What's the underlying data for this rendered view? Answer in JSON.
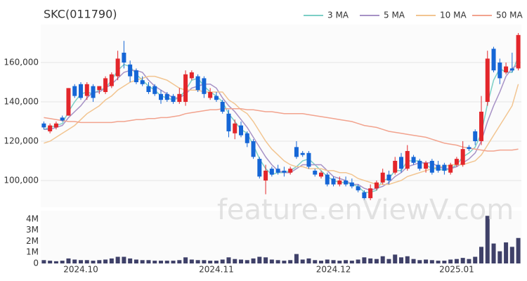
{
  "chart_data": [
    {
      "type": "candlestick",
      "title": "SKC(011790)",
      "watermark": "feature.enViewV.com",
      "categories": [
        null,
        null,
        null,
        null,
        null,
        null,
        "2024.10",
        null,
        null,
        null,
        null,
        null,
        null,
        null,
        null,
        null,
        null,
        null,
        null,
        null,
        null,
        null,
        null,
        null,
        null,
        null,
        null,
        null,
        "2024.11",
        null,
        null,
        null,
        null,
        null,
        null,
        null,
        null,
        null,
        null,
        null,
        null,
        null,
        null,
        null,
        null,
        null,
        null,
        "2024.12",
        null,
        null,
        null,
        null,
        null,
        null,
        null,
        null,
        null,
        null,
        null,
        null,
        null,
        null,
        null,
        null,
        null,
        null,
        null,
        "2025.01",
        null,
        null,
        null,
        null,
        null,
        null,
        null,
        null,
        null,
        null
      ],
      "open": [
        129000,
        125000,
        127000,
        132000,
        133000,
        148000,
        149000,
        143000,
        148000,
        146000,
        145000,
        148000,
        153000,
        165000,
        159000,
        156000,
        151000,
        148000,
        148000,
        144000,
        144000,
        143000,
        140000,
        140000,
        152000,
        153000,
        152000,
        142000,
        143000,
        140000,
        134000,
        124000,
        128000,
        124000,
        120000,
        111000,
        100000,
        106000,
        106000,
        105000,
        104000,
        117000,
        114000,
        114000,
        105000,
        102000,
        103000,
        101000,
        98000,
        100000,
        99000,
        97000,
        94000,
        91000,
        96000,
        99000,
        103000,
        104000,
        112000,
        106000,
        112000,
        110000,
        106000,
        110000,
        108000,
        108000,
        104000,
        108000,
        108000,
        117000,
        125000,
        120000,
        140000,
        167000,
        160000,
        155000,
        157000,
        157000
      ],
      "high": [
        130000,
        129000,
        130000,
        133000,
        147000,
        149000,
        150000,
        150000,
        149000,
        148000,
        153000,
        155000,
        166000,
        171000,
        161000,
        157000,
        153000,
        150000,
        149000,
        146000,
        145000,
        144000,
        147000,
        156000,
        156000,
        154000,
        153000,
        147000,
        145000,
        141000,
        136000,
        131000,
        130000,
        125000,
        121000,
        112000,
        108000,
        107000,
        108000,
        107000,
        107000,
        120000,
        115000,
        115000,
        106000,
        105000,
        104000,
        102000,
        102000,
        102000,
        101000,
        98000,
        95000,
        98000,
        100000,
        106000,
        105000,
        112000,
        114000,
        118000,
        113000,
        111000,
        110000,
        111000,
        110000,
        109000,
        109000,
        112000,
        120000,
        118000,
        126000,
        143000,
        166000,
        168000,
        162000,
        160000,
        165000,
        175000
      ],
      "low": [
        126000,
        124000,
        126000,
        130000,
        133000,
        142000,
        141000,
        141000,
        140000,
        144000,
        144000,
        147000,
        151000,
        157000,
        150000,
        149000,
        148000,
        144000,
        143000,
        139000,
        140000,
        139000,
        139000,
        138000,
        151000,
        145000,
        142000,
        141000,
        140000,
        134000,
        122000,
        121000,
        122000,
        117000,
        111000,
        101000,
        93000,
        102000,
        103000,
        102000,
        103000,
        111000,
        112000,
        106000,
        102000,
        101000,
        97000,
        97000,
        97000,
        97000,
        96000,
        94000,
        90000,
        90000,
        95000,
        98000,
        98000,
        103000,
        104000,
        105000,
        108000,
        105000,
        104000,
        103000,
        104000,
        103000,
        103000,
        107000,
        107000,
        115000,
        118000,
        118000,
        138000,
        155000,
        149000,
        154000,
        155000,
        156000
      ],
      "close": [
        127000,
        128000,
        129000,
        130500,
        147000,
        143000,
        142000,
        149000,
        142000,
        148000,
        152000,
        154000,
        162000,
        160000,
        153000,
        150000,
        149000,
        145000,
        144000,
        141000,
        141000,
        140000,
        144000,
        154000,
        155000,
        146000,
        144000,
        145000,
        141000,
        135000,
        125000,
        129000,
        123000,
        119000,
        112000,
        102000,
        105000,
        103000,
        104000,
        104000,
        106000,
        112000,
        113000,
        107000,
        103000,
        104000,
        98000,
        98000,
        100000,
        98000,
        97000,
        95000,
        91000,
        96000,
        99000,
        104000,
        100000,
        110000,
        106000,
        115000,
        109000,
        106000,
        109000,
        104000,
        105000,
        105000,
        108000,
        111000,
        116000,
        116000,
        120000,
        135000,
        162000,
        156000,
        152000,
        158000,
        156000,
        174000
      ],
      "up_color": "#e3262b",
      "down_color": "#1566d6",
      "series": [
        {
          "name": "3 MA",
          "color": "#7ccfc6",
          "values": [
            126000,
            127000,
            128000,
            129000,
            135000,
            140000,
            144000,
            145000,
            144000,
            146000,
            147000,
            151000,
            156000,
            159000,
            158000,
            154000,
            151000,
            148000,
            146000,
            143000,
            142000,
            141000,
            142000,
            146000,
            151000,
            152000,
            148000,
            145000,
            143000,
            140000,
            134000,
            130000,
            126000,
            124000,
            118000,
            111000,
            106000,
            103000,
            104000,
            104000,
            105000,
            107000,
            110000,
            111000,
            108000,
            105000,
            102000,
            100000,
            99000,
            99000,
            98000,
            97000,
            94000,
            94000,
            95000,
            100000,
            101000,
            105000,
            105000,
            110000,
            110000,
            110000,
            108000,
            106000,
            106000,
            105000,
            106000,
            108000,
            112000,
            114000,
            117000,
            124000,
            139000,
            151000,
            157000,
            155000,
            155000,
            163000
          ]
        },
        {
          "name": "5 MA",
          "color": "#a792c6",
          "values": [
            126000,
            126000,
            127000,
            128000,
            132000,
            135000,
            138000,
            142000,
            145000,
            145000,
            147000,
            149000,
            152000,
            155000,
            156000,
            156000,
            155000,
            151000,
            148000,
            146000,
            144000,
            142000,
            142000,
            144000,
            147000,
            148000,
            149000,
            149000,
            147000,
            142000,
            138000,
            135000,
            131000,
            127000,
            122000,
            117000,
            112000,
            108000,
            105000,
            104000,
            104000,
            106000,
            108000,
            108000,
            108000,
            108000,
            105000,
            102000,
            101000,
            100000,
            98000,
            98000,
            96000,
            95000,
            96000,
            97000,
            99000,
            102000,
            104000,
            107000,
            108000,
            109000,
            109000,
            109000,
            107000,
            106000,
            106000,
            107000,
            109000,
            111000,
            114000,
            120000,
            130000,
            138000,
            145000,
            153000,
            157000,
            159000
          ]
        },
        {
          "name": "10 MA",
          "color": "#f2c591",
          "values": [
            119000,
            120000,
            122000,
            124000,
            126000,
            128000,
            131000,
            134000,
            136000,
            138000,
            141000,
            143000,
            146000,
            148000,
            150000,
            151000,
            152000,
            153000,
            153000,
            152000,
            151000,
            149000,
            147000,
            146000,
            146000,
            146000,
            145000,
            145000,
            145000,
            145000,
            141000,
            139000,
            136000,
            134000,
            130000,
            125000,
            120000,
            116000,
            113000,
            110000,
            108000,
            107000,
            107000,
            106000,
            106000,
            106000,
            105000,
            105000,
            104000,
            104000,
            103000,
            101000,
            100000,
            99000,
            98000,
            98000,
            98000,
            99000,
            100000,
            102000,
            103000,
            104000,
            105000,
            106000,
            107000,
            107000,
            108000,
            108000,
            108000,
            109000,
            110000,
            113000,
            118000,
            123000,
            128000,
            133000,
            138000,
            149000
          ]
        },
        {
          "name": "50 MA",
          "color": "#f2a38e",
          "values": [
            132000,
            131500,
            131000,
            130500,
            130000,
            130000,
            129500,
            129500,
            129500,
            129500,
            129500,
            129500,
            130000,
            130000,
            130500,
            131000,
            131000,
            131500,
            131500,
            132000,
            132000,
            132500,
            133000,
            134000,
            134500,
            135000,
            135500,
            136000,
            136000,
            136500,
            136500,
            136500,
            136500,
            136000,
            136000,
            135500,
            135000,
            135000,
            134500,
            134000,
            134000,
            134000,
            134000,
            133500,
            133000,
            132500,
            132000,
            131500,
            131000,
            130500,
            130000,
            129000,
            128000,
            127500,
            127000,
            126000,
            125000,
            124500,
            124000,
            123500,
            123000,
            122500,
            122000,
            121000,
            120000,
            119000,
            118500,
            118000,
            117000,
            116500,
            116000,
            115500,
            115000,
            115000,
            115500,
            115500,
            115500,
            116000
          ]
        }
      ],
      "ylim": [
        86400,
        179300
      ],
      "yticks": [
        {
          "value": 100000,
          "label": "100,000"
        },
        {
          "value": 120000,
          "label": "120,000"
        },
        {
          "value": 140000,
          "label": "140,000"
        },
        {
          "value": 160000,
          "label": "160,000"
        }
      ],
      "grid": true
    },
    {
      "type": "bar",
      "color": "#3f4169",
      "values": [
        300000,
        250000,
        200000,
        250000,
        450000,
        350000,
        300000,
        300000,
        250000,
        300000,
        350000,
        450000,
        600000,
        600000,
        450000,
        350000,
        300000,
        300000,
        250000,
        250000,
        250000,
        250000,
        300000,
        550000,
        350000,
        300000,
        300000,
        250000,
        250000,
        350000,
        550000,
        400000,
        350000,
        300000,
        450000,
        600000,
        550000,
        350000,
        300000,
        250000,
        300000,
        850000,
        350000,
        450000,
        300000,
        250000,
        350000,
        300000,
        250000,
        300000,
        250000,
        350000,
        550000,
        450000,
        400000,
        650000,
        400000,
        800000,
        550000,
        650000,
        400000,
        300000,
        350000,
        300000,
        250000,
        250000,
        350000,
        400000,
        500000,
        400000,
        600000,
        1500000,
        4300000,
        1800000,
        1100000,
        1900000,
        1500000,
        2300000
      ],
      "ylim": [
        0,
        4570000
      ],
      "yticks": [
        0,
        {
          "value": 1000000,
          "label": "1M"
        },
        {
          "value": 2000000,
          "label": "2M"
        },
        {
          "value": 3000000,
          "label": "3M"
        },
        {
          "value": 4000000,
          "label": "4M"
        }
      ]
    }
  ]
}
